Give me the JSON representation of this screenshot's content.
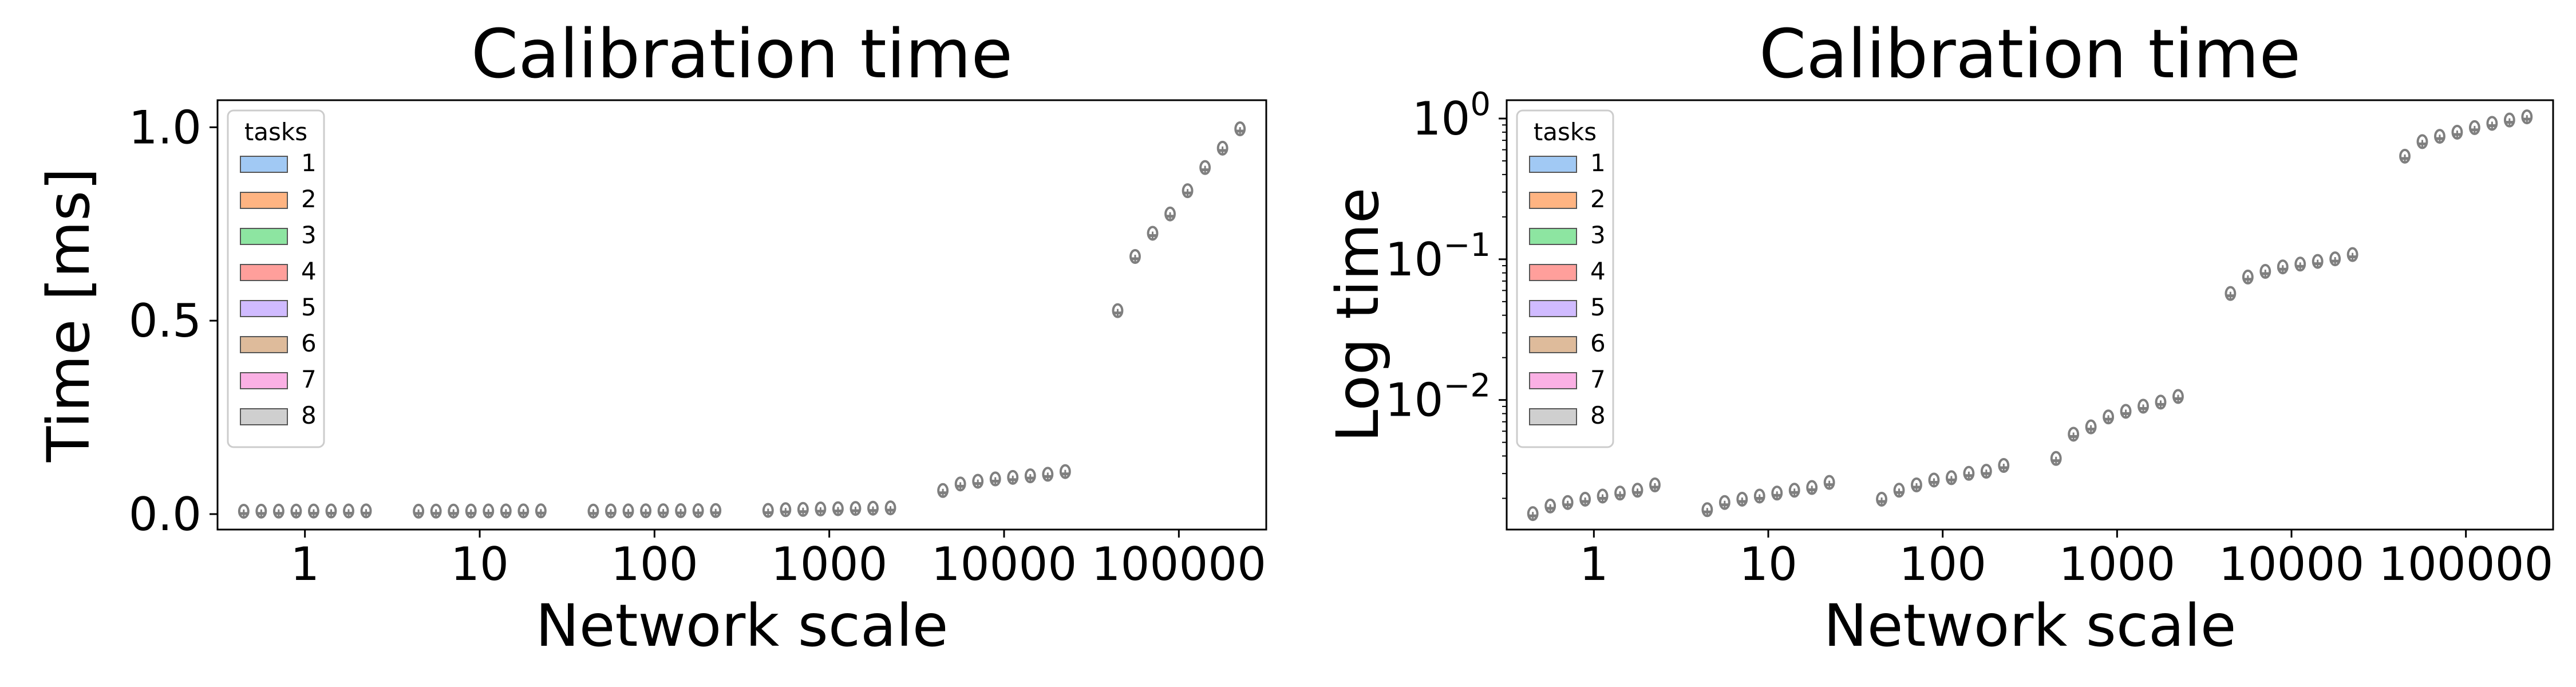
{
  "legend_title": "tasks",
  "legend_entries": [
    "1",
    "2",
    "3",
    "4",
    "5",
    "6",
    "7",
    "8"
  ],
  "colors": {
    "box_edge": "#7f7f7f",
    "legend_edge": "#cccccc",
    "series": [
      "#a1c9f4",
      "#ffb482",
      "#8de5a1",
      "#ff9f9b",
      "#d0bbff",
      "#debb9b",
      "#fab0e4",
      "#cfcfcf"
    ]
  },
  "chart_data": [
    {
      "type": "box",
      "title": "Calibration time",
      "xlabel": "Network scale",
      "ylabel": "Time [ms]",
      "yscale": "linear",
      "ylim": [
        -0.04,
        1.07
      ],
      "yticks": [
        0.0,
        0.5,
        1.0
      ],
      "ytick_labels": [
        "0.0",
        "0.5",
        "1.0"
      ],
      "categories": [
        "1",
        "10",
        "100",
        "1000",
        "10000",
        "100000"
      ],
      "legend_title": "tasks",
      "legend": [
        "1",
        "2",
        "3",
        "4",
        "5",
        "6",
        "7",
        "8"
      ],
      "legend_position": "upper left",
      "values": [
        [
          0.0015,
          0.0017,
          0.0018,
          0.0019,
          0.002,
          0.0021,
          0.0022,
          0.0024
        ],
        [
          0.0016,
          0.0018,
          0.0019,
          0.002,
          0.0021,
          0.0022,
          0.0023,
          0.0025
        ],
        [
          0.0019,
          0.0022,
          0.0024,
          0.0026,
          0.0027,
          0.0029,
          0.003,
          0.0033
        ],
        [
          0.0037,
          0.0055,
          0.0062,
          0.0073,
          0.008,
          0.0087,
          0.0093,
          0.0102
        ],
        [
          0.055,
          0.072,
          0.079,
          0.085,
          0.089,
          0.093,
          0.097,
          0.104
        ],
        [
          0.52,
          0.66,
          0.72,
          0.77,
          0.83,
          0.89,
          0.94,
          0.99
        ]
      ]
    },
    {
      "type": "box",
      "title": "Calibration time",
      "xlabel": "Network scale",
      "ylabel": "Log time",
      "yscale": "log",
      "ylim": [
        0.0012,
        1.35
      ],
      "yticks": [
        0.01,
        0.1,
        1
      ],
      "ytick_labels": [
        [
          "10",
          "−2"
        ],
        [
          "10",
          "−1"
        ],
        [
          "10",
          "0"
        ]
      ],
      "categories": [
        "1",
        "10",
        "100",
        "1000",
        "10000",
        "100000"
      ],
      "legend_title": "tasks",
      "legend": [
        "1",
        "2",
        "3",
        "4",
        "5",
        "6",
        "7",
        "8"
      ],
      "legend_position": "upper left",
      "values": [
        [
          0.0015,
          0.0017,
          0.0018,
          0.0019,
          0.002,
          0.0021,
          0.0022,
          0.0024
        ],
        [
          0.0016,
          0.0018,
          0.0019,
          0.002,
          0.0021,
          0.0022,
          0.0023,
          0.0025
        ],
        [
          0.0019,
          0.0022,
          0.0024,
          0.0026,
          0.0027,
          0.0029,
          0.003,
          0.0033
        ],
        [
          0.0037,
          0.0055,
          0.0062,
          0.0073,
          0.008,
          0.0087,
          0.0093,
          0.0102
        ],
        [
          0.055,
          0.072,
          0.079,
          0.085,
          0.089,
          0.093,
          0.097,
          0.104
        ],
        [
          0.52,
          0.66,
          0.72,
          0.77,
          0.83,
          0.89,
          0.94,
          0.99
        ]
      ]
    }
  ]
}
